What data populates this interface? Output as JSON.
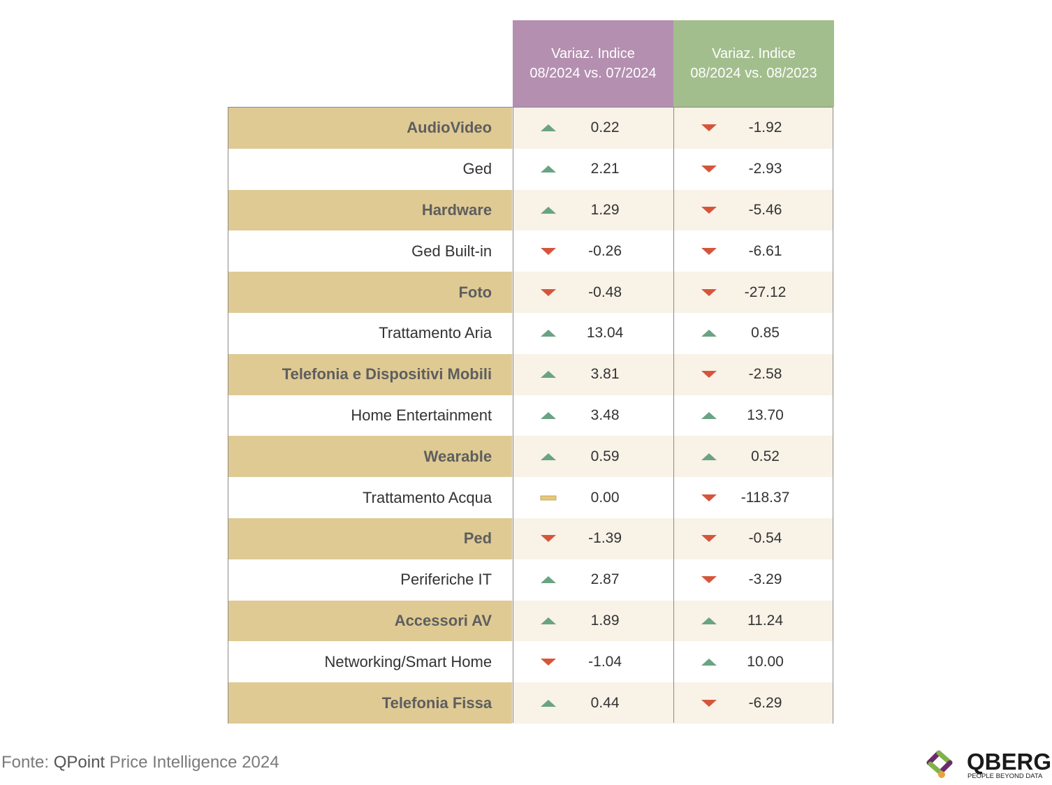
{
  "colors": {
    "header_mom_bg": "#b48fb0",
    "header_yoy_bg": "#a3be8d",
    "category_odd_bg": "#dfca94",
    "category_even_bg": "#ffffff",
    "value_odd_bg": "#f8f2e7",
    "value_even_bg": "#ffffff",
    "up_arrow": "#6aa384",
    "down_arrow": "#d6553a",
    "flat_marker": "#e9c77a",
    "grid": "#8a8a8a"
  },
  "chart_data": {
    "type": "table",
    "columns": [
      {
        "line1": "Variaz. Indice",
        "line2": "08/2024 vs. 07/2024"
      },
      {
        "line1": "Variaz. Indice",
        "line2": "08/2024 vs. 08/2023"
      }
    ],
    "rows": [
      {
        "category": "AudioVideo",
        "mom": "0.22",
        "mom_dir": "up",
        "yoy": "-1.92",
        "yoy_dir": "down"
      },
      {
        "category": "Ged",
        "mom": "2.21",
        "mom_dir": "up",
        "yoy": "-2.93",
        "yoy_dir": "down"
      },
      {
        "category": "Hardware",
        "mom": "1.29",
        "mom_dir": "up",
        "yoy": "-5.46",
        "yoy_dir": "down"
      },
      {
        "category": "Ged Built-in",
        "mom": "-0.26",
        "mom_dir": "down",
        "yoy": "-6.61",
        "yoy_dir": "down"
      },
      {
        "category": "Foto",
        "mom": "-0.48",
        "mom_dir": "down",
        "yoy": "-27.12",
        "yoy_dir": "down"
      },
      {
        "category": "Trattamento Aria",
        "mom": "13.04",
        "mom_dir": "up",
        "yoy": "0.85",
        "yoy_dir": "up"
      },
      {
        "category": "Telefonia e Dispositivi Mobili",
        "mom": "3.81",
        "mom_dir": "up",
        "yoy": "-2.58",
        "yoy_dir": "down"
      },
      {
        "category": "Home Entertainment",
        "mom": "3.48",
        "mom_dir": "up",
        "yoy": "13.70",
        "yoy_dir": "up"
      },
      {
        "category": "Wearable",
        "mom": "0.59",
        "mom_dir": "up",
        "yoy": "0.52",
        "yoy_dir": "up"
      },
      {
        "category": "Trattamento Acqua",
        "mom": "0.00",
        "mom_dir": "flat",
        "yoy": "-118.37",
        "yoy_dir": "down"
      },
      {
        "category": "Ped",
        "mom": "-1.39",
        "mom_dir": "down",
        "yoy": "-0.54",
        "yoy_dir": "down"
      },
      {
        "category": "Periferiche IT",
        "mom": "2.87",
        "mom_dir": "up",
        "yoy": "-3.29",
        "yoy_dir": "down"
      },
      {
        "category": "Accessori AV",
        "mom": "1.89",
        "mom_dir": "up",
        "yoy": "11.24",
        "yoy_dir": "up"
      },
      {
        "category": "Networking/Smart Home",
        "mom": "-1.04",
        "mom_dir": "down",
        "yoy": "10.00",
        "yoy_dir": "up"
      },
      {
        "category": "Telefonia Fissa",
        "mom": "0.44",
        "mom_dir": "up",
        "yoy": "-6.29",
        "yoy_dir": "down"
      }
    ]
  },
  "footer": {
    "source_prefix": "Fonte: ",
    "source_brand": "QPoint",
    "source_suffix": " Price Intelligence 2024"
  },
  "logo": {
    "name": "QBERG",
    "tagline": "PEOPLE BEYOND DATA",
    "colors": [
      "#6b2a6b",
      "#7fb24a",
      "#e9a23b"
    ]
  }
}
